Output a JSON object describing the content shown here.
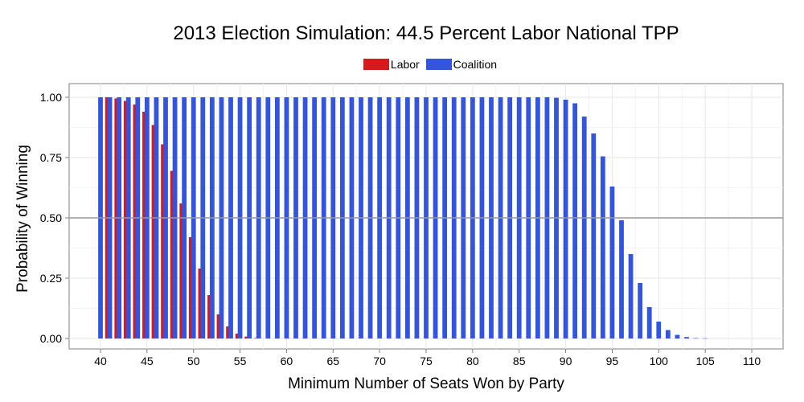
{
  "chart_data": {
    "type": "bar",
    "title": "2013 Election Simulation: 44.5 Percent Labor National TPP",
    "xlabel": "Minimum Number of Seats Won by Party",
    "ylabel": "Probability of Winning",
    "xlim": [
      40,
      110
    ],
    "ylim": [
      0,
      1
    ],
    "x_ticks": [
      "40",
      "45",
      "50",
      "55",
      "60",
      "65",
      "70",
      "75",
      "80",
      "85",
      "90",
      "95",
      "100",
      "105",
      "110"
    ],
    "y_ticks": [
      "0.00",
      "0.25",
      "0.50",
      "0.75",
      "1.00"
    ],
    "reference_line": 0.5,
    "grid": true,
    "legend_position": "top",
    "colors": {
      "Labor": "#d7191c",
      "Coalition": "#3355dd",
      "reference": "#999999"
    },
    "series": [
      {
        "name": "Labor",
        "x": [
          41,
          42,
          43,
          44,
          45,
          46,
          47,
          48,
          49,
          50,
          51,
          52,
          53,
          54,
          55,
          56,
          57
        ],
        "values": [
          1.0,
          0.995,
          0.985,
          0.97,
          0.94,
          0.885,
          0.805,
          0.695,
          0.56,
          0.42,
          0.29,
          0.18,
          0.1,
          0.05,
          0.02,
          0.008,
          0.002
        ]
      },
      {
        "name": "Coalition",
        "x": [
          40,
          41,
          42,
          43,
          44,
          45,
          46,
          47,
          48,
          49,
          50,
          51,
          52,
          53,
          54,
          55,
          56,
          57,
          58,
          59,
          60,
          61,
          62,
          63,
          64,
          65,
          66,
          67,
          68,
          69,
          70,
          71,
          72,
          73,
          74,
          75,
          76,
          77,
          78,
          79,
          80,
          81,
          82,
          83,
          84,
          85,
          86,
          87,
          88,
          89,
          90,
          91,
          92,
          93,
          94,
          95,
          96,
          97,
          98,
          99,
          100,
          101,
          102,
          103,
          104,
          105,
          106
        ],
        "values": [
          1.0,
          1.0,
          1.0,
          1.0,
          1.0,
          1.0,
          1.0,
          1.0,
          1.0,
          1.0,
          1.0,
          1.0,
          1.0,
          1.0,
          1.0,
          1.0,
          1.0,
          1.0,
          1.0,
          1.0,
          1.0,
          1.0,
          1.0,
          1.0,
          1.0,
          1.0,
          1.0,
          1.0,
          1.0,
          1.0,
          1.0,
          1.0,
          1.0,
          1.0,
          1.0,
          1.0,
          1.0,
          1.0,
          1.0,
          1.0,
          1.0,
          1.0,
          1.0,
          1.0,
          1.0,
          1.0,
          1.0,
          1.0,
          1.0,
          0.998,
          0.99,
          0.975,
          0.92,
          0.85,
          0.755,
          0.63,
          0.49,
          0.35,
          0.23,
          0.13,
          0.07,
          0.035,
          0.015,
          0.006,
          0.002,
          0.001,
          0.0
        ]
      }
    ]
  }
}
